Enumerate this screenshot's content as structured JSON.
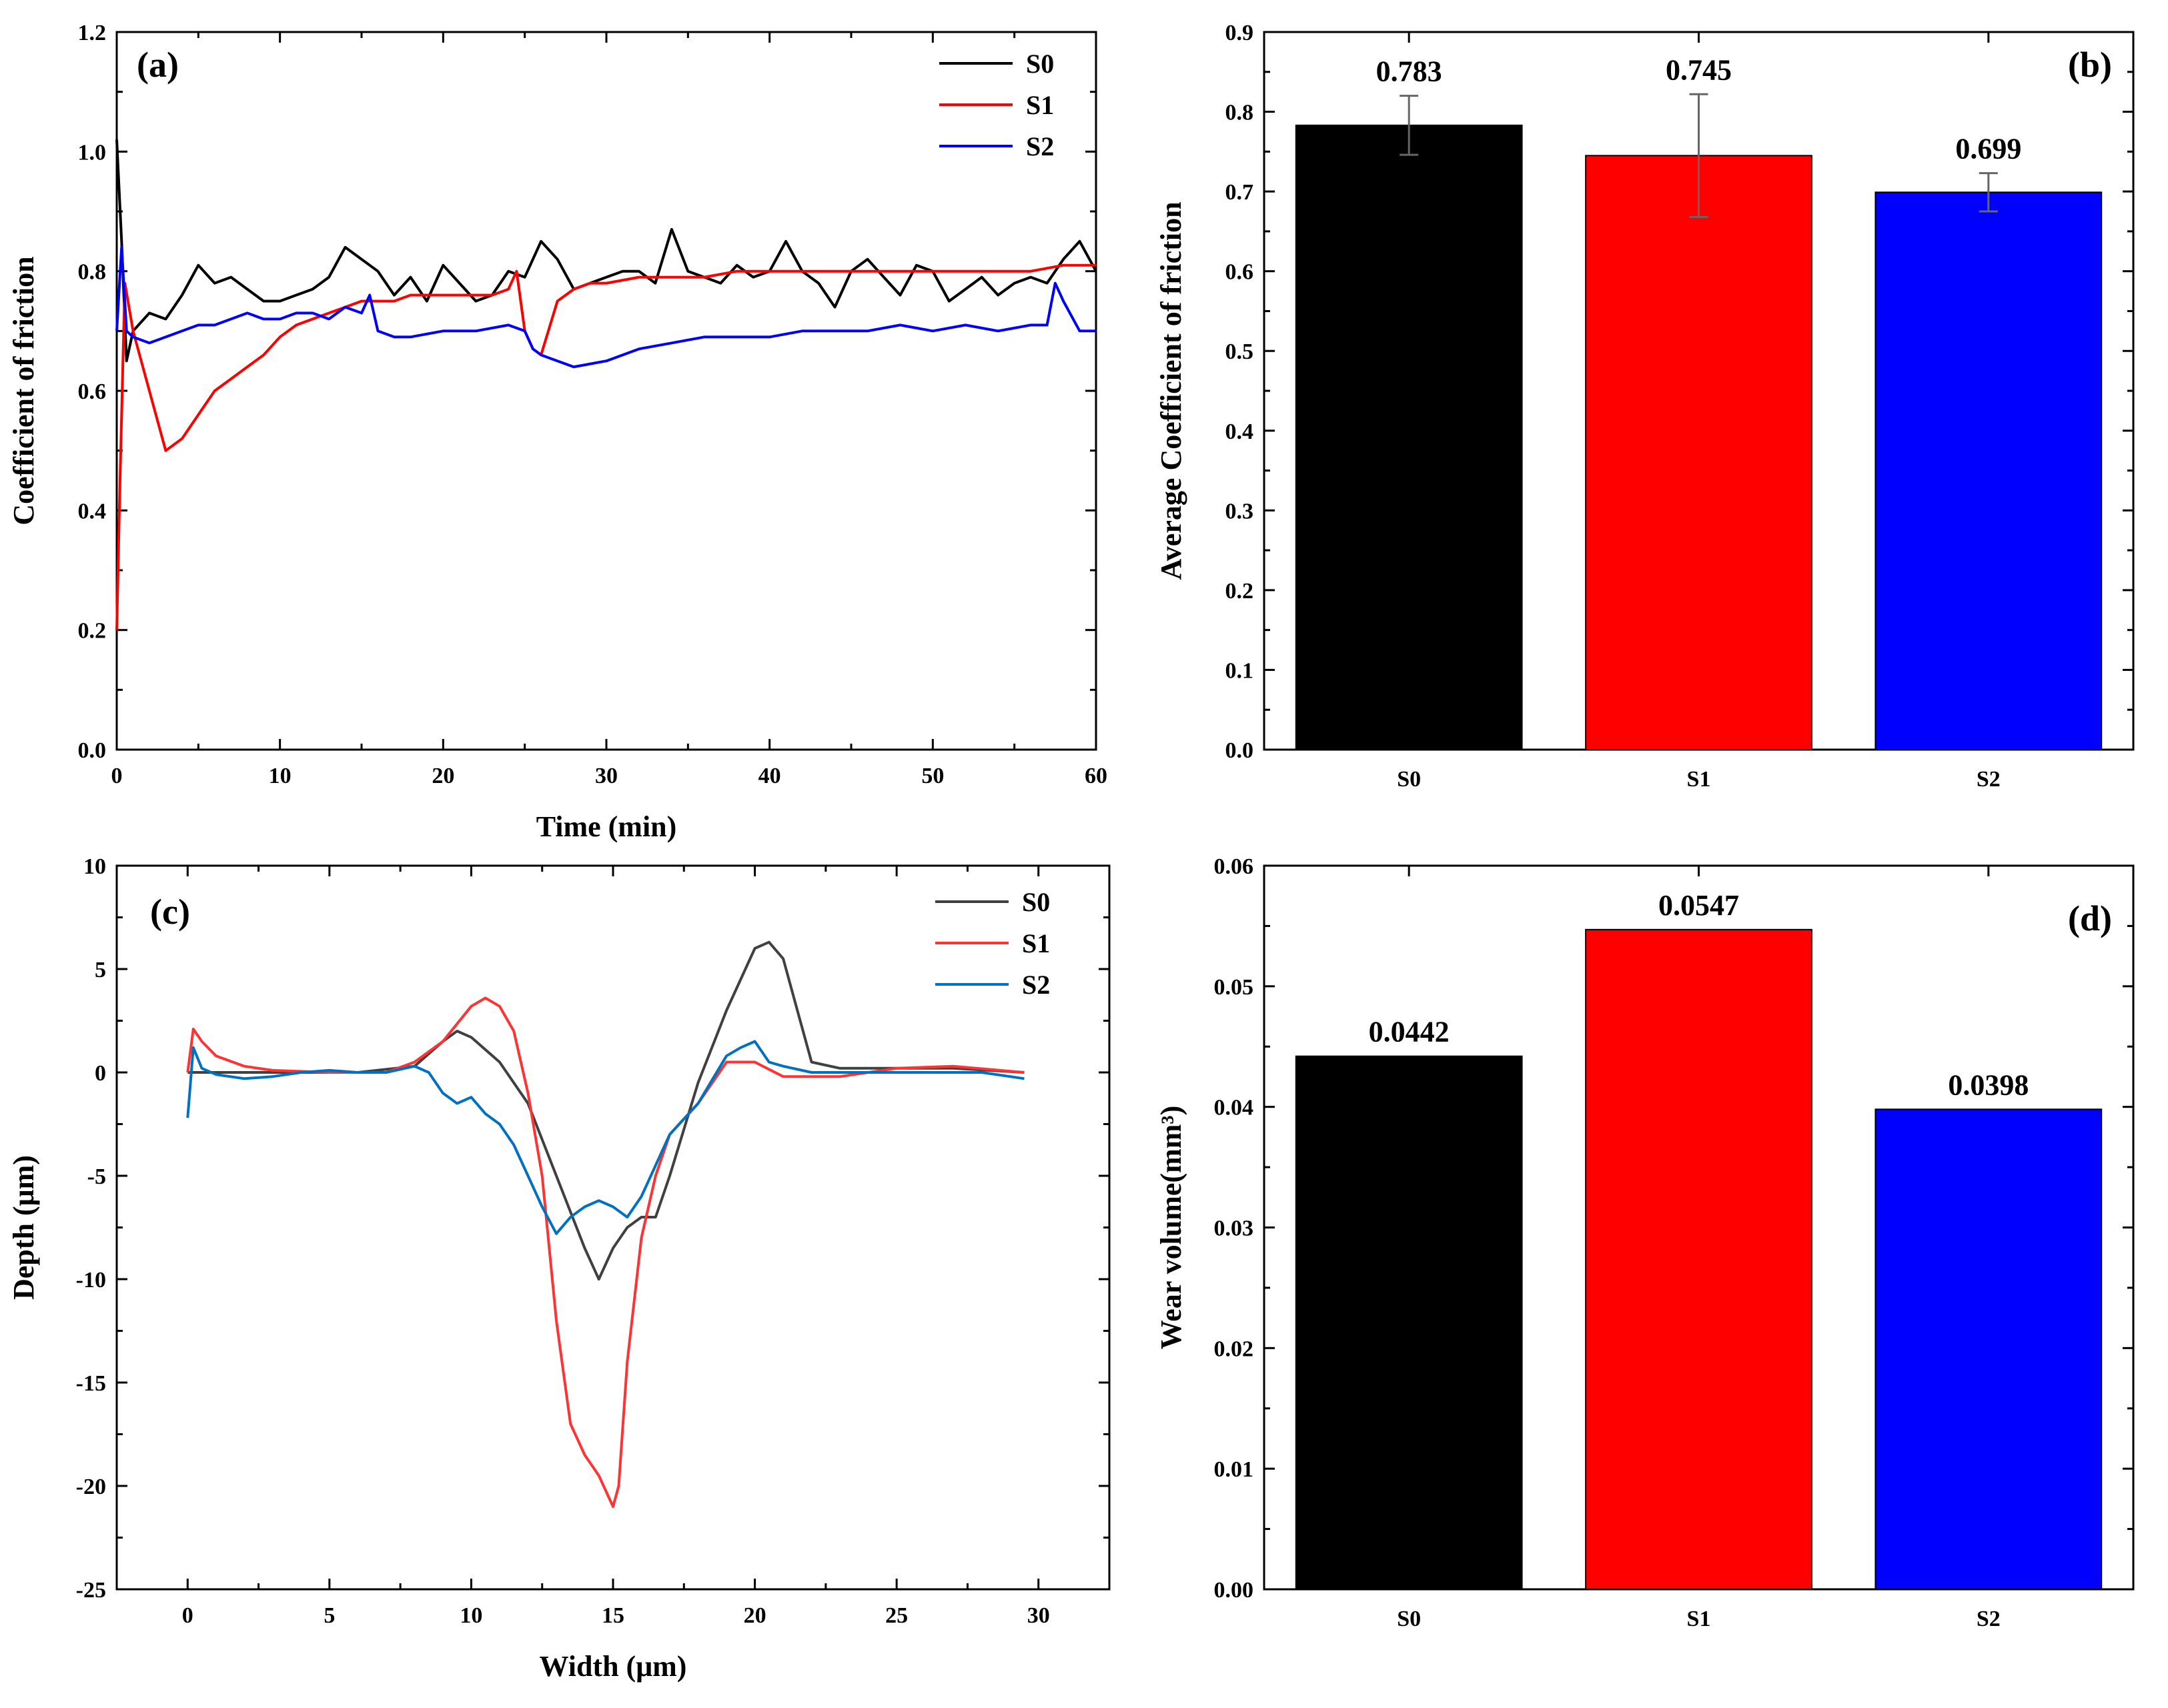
{
  "chart_data": [
    {
      "panel": "(a)",
      "type": "line",
      "xlabel": "Time (min)",
      "ylabel": "Coefficient of friction",
      "xlim": [
        0,
        60
      ],
      "ylim": [
        0,
        1.2
      ],
      "xticks": [
        0,
        10,
        20,
        30,
        40,
        50,
        60
      ],
      "yticks": [
        "0.0",
        "0.2",
        "0.4",
        "0.6",
        "0.8",
        "1.0",
        "1.2"
      ],
      "legend_position": "top-right",
      "series": [
        {
          "name": "S0",
          "color": "#000000",
          "x": [
            0,
            0.3,
            0.6,
            1,
            2,
            3,
            4,
            5,
            6,
            7,
            8,
            9,
            10,
            11,
            12,
            13,
            14,
            15,
            16,
            17,
            18,
            19,
            20,
            21,
            22,
            23,
            24,
            25,
            26,
            27,
            28,
            29,
            30,
            31,
            32,
            33,
            34,
            35,
            36,
            37,
            38,
            39,
            40,
            41,
            42,
            43,
            44,
            45,
            46,
            47,
            48,
            49,
            50,
            51,
            52,
            53,
            54,
            55,
            56,
            57,
            58,
            59,
            60
          ],
          "y": [
            1.02,
            0.85,
            0.65,
            0.7,
            0.73,
            0.72,
            0.76,
            0.81,
            0.78,
            0.79,
            0.77,
            0.75,
            0.75,
            0.76,
            0.77,
            0.79,
            0.84,
            0.82,
            0.8,
            0.76,
            0.79,
            0.75,
            0.81,
            0.78,
            0.75,
            0.76,
            0.8,
            0.79,
            0.85,
            0.82,
            0.77,
            0.78,
            0.79,
            0.8,
            0.8,
            0.78,
            0.87,
            0.8,
            0.79,
            0.78,
            0.81,
            0.79,
            0.8,
            0.85,
            0.8,
            0.78,
            0.74,
            0.8,
            0.82,
            0.79,
            0.76,
            0.81,
            0.8,
            0.75,
            0.77,
            0.79,
            0.76,
            0.78,
            0.79,
            0.78,
            0.82,
            0.85,
            0.8
          ]
        },
        {
          "name": "S1",
          "color": "#ff0000",
          "x": [
            0,
            0.2,
            0.5,
            1,
            2,
            3,
            4,
            5,
            6,
            7,
            8,
            9,
            10,
            11,
            12,
            13,
            14,
            15,
            16,
            17,
            18,
            19,
            20,
            21,
            22,
            23,
            24,
            24.5,
            25,
            25.5,
            26,
            27,
            28,
            29,
            30,
            32,
            34,
            36,
            38,
            40,
            42,
            44,
            46,
            48,
            50,
            52,
            54,
            56,
            58,
            60
          ],
          "y": [
            0.2,
            0.45,
            0.78,
            0.7,
            0.6,
            0.5,
            0.52,
            0.56,
            0.6,
            0.62,
            0.64,
            0.66,
            0.69,
            0.71,
            0.72,
            0.73,
            0.74,
            0.75,
            0.75,
            0.75,
            0.76,
            0.76,
            0.76,
            0.76,
            0.76,
            0.76,
            0.77,
            0.8,
            0.7,
            0.67,
            0.66,
            0.75,
            0.77,
            0.78,
            0.78,
            0.79,
            0.79,
            0.79,
            0.8,
            0.8,
            0.8,
            0.8,
            0.8,
            0.8,
            0.8,
            0.8,
            0.8,
            0.8,
            0.81,
            0.81
          ]
        },
        {
          "name": "S2",
          "color": "#0000ff",
          "x": [
            0,
            0.3,
            0.6,
            1,
            2,
            3,
            4,
            5,
            6,
            7,
            8,
            9,
            10,
            11,
            12,
            13,
            14,
            15,
            15.5,
            16,
            17,
            18,
            20,
            22,
            24,
            25,
            25.5,
            26,
            27,
            28,
            30,
            32,
            34,
            36,
            38,
            40,
            42,
            44,
            46,
            48,
            50,
            52,
            54,
            56,
            57,
            57.5,
            58,
            59,
            60
          ],
          "y": [
            0.7,
            0.84,
            0.7,
            0.69,
            0.68,
            0.69,
            0.7,
            0.71,
            0.71,
            0.72,
            0.73,
            0.72,
            0.72,
            0.73,
            0.73,
            0.72,
            0.74,
            0.73,
            0.76,
            0.7,
            0.69,
            0.69,
            0.7,
            0.7,
            0.71,
            0.7,
            0.67,
            0.66,
            0.65,
            0.64,
            0.65,
            0.67,
            0.68,
            0.69,
            0.69,
            0.69,
            0.7,
            0.7,
            0.7,
            0.71,
            0.7,
            0.71,
            0.7,
            0.71,
            0.71,
            0.78,
            0.75,
            0.7,
            0.7
          ]
        }
      ]
    },
    {
      "panel": "(b)",
      "type": "bar",
      "xlabel": "",
      "ylabel": "Average Coefficient of friction",
      "ylim": [
        0,
        0.9
      ],
      "yticks": [
        "0.0",
        "0.1",
        "0.2",
        "0.3",
        "0.4",
        "0.5",
        "0.6",
        "0.7",
        "0.8",
        "0.9"
      ],
      "categories": [
        "S0",
        "S1",
        "S2"
      ],
      "values": [
        0.783,
        0.745,
        0.699
      ],
      "errors": [
        0.037,
        0.077,
        0.024
      ],
      "labels": [
        "0.783",
        "0.745",
        "0.699"
      ],
      "colors": [
        "#000000",
        "#ff0000",
        "#0000ff"
      ]
    },
    {
      "panel": "(c)",
      "type": "line",
      "xlabel": "Width (μm)",
      "ylabel": "Depth (μm)",
      "xlim": [
        -2.5,
        32.5
      ],
      "ylim": [
        -25,
        10
      ],
      "xticks": [
        0,
        5,
        10,
        15,
        20,
        25,
        30
      ],
      "yticks": [
        -25,
        -20,
        -15,
        -10,
        -5,
        0,
        5,
        10
      ],
      "legend_position": "top-right",
      "series": [
        {
          "name": "S0",
          "color": "#404040",
          "x": [
            0,
            2,
            4,
            6,
            8,
            9,
            9.5,
            10,
            11,
            12,
            13,
            14,
            14.5,
            15,
            15.5,
            16,
            16.5,
            17,
            18,
            19,
            20,
            20.5,
            21,
            21.5,
            22,
            23,
            25,
            27,
            29.5
          ],
          "y": [
            0,
            0,
            0,
            0,
            0.3,
            1.5,
            2,
            1.7,
            0.5,
            -1.5,
            -5,
            -8.5,
            -10,
            -8.5,
            -7.5,
            -7,
            -7,
            -5,
            -0.5,
            3,
            6,
            6.3,
            5.5,
            3,
            0.5,
            0.2,
            0.2,
            0.2,
            0
          ]
        },
        {
          "name": "S1",
          "color": "#ff3333",
          "x": [
            0,
            0.2,
            0.5,
            1,
            2,
            3,
            5,
            7,
            8,
            9,
            10,
            10.5,
            11,
            11.5,
            12,
            12.5,
            13,
            13.5,
            14,
            14.5,
            15,
            15.2,
            15.5,
            16,
            16.5,
            17,
            18,
            19,
            20,
            21,
            23,
            25,
            27,
            29.5
          ],
          "y": [
            0,
            2.1,
            1.5,
            0.8,
            0.3,
            0.1,
            0,
            0,
            0.5,
            1.5,
            3.2,
            3.6,
            3.2,
            2,
            -1,
            -5,
            -12,
            -17,
            -18.5,
            -19.5,
            -21,
            -20,
            -14,
            -8,
            -5,
            -3,
            -1.5,
            0.5,
            0.5,
            -0.2,
            -0.2,
            0.2,
            0.3,
            0
          ]
        },
        {
          "name": "S2",
          "color": "#0070c0",
          "x": [
            0,
            0.2,
            0.5,
            1,
            2,
            3,
            4,
            5,
            6,
            7,
            8,
            8.5,
            9,
            9.5,
            10,
            10.5,
            11,
            11.5,
            12,
            12.5,
            13,
            13.5,
            14,
            14.5,
            15,
            15.5,
            16,
            17,
            18,
            19,
            19.5,
            20,
            20.5,
            21,
            22,
            25,
            28,
            29.5
          ],
          "y": [
            -2.2,
            1.2,
            0.2,
            -0.1,
            -0.3,
            -0.2,
            0,
            0.1,
            0,
            0,
            0.3,
            0,
            -1,
            -1.5,
            -1.2,
            -2,
            -2.5,
            -3.5,
            -5,
            -6.5,
            -7.8,
            -7,
            -6.5,
            -6.2,
            -6.5,
            -7,
            -6,
            -3,
            -1.5,
            0.8,
            1.2,
            1.5,
            0.5,
            0.3,
            0,
            0,
            0,
            -0.3
          ]
        }
      ]
    },
    {
      "panel": "(d)",
      "type": "bar",
      "xlabel": "",
      "ylabel": "Wear volume(mm³)",
      "ylim": [
        0,
        0.06
      ],
      "yticks": [
        "0.00",
        "0.01",
        "0.02",
        "0.03",
        "0.04",
        "0.05",
        "0.06"
      ],
      "categories": [
        "S0",
        "S1",
        "S2"
      ],
      "values": [
        0.0442,
        0.0547,
        0.0398
      ],
      "labels": [
        "0.0442",
        "0.0547",
        "0.0398"
      ],
      "colors": [
        "#000000",
        "#ff0000",
        "#0000ff"
      ]
    }
  ]
}
